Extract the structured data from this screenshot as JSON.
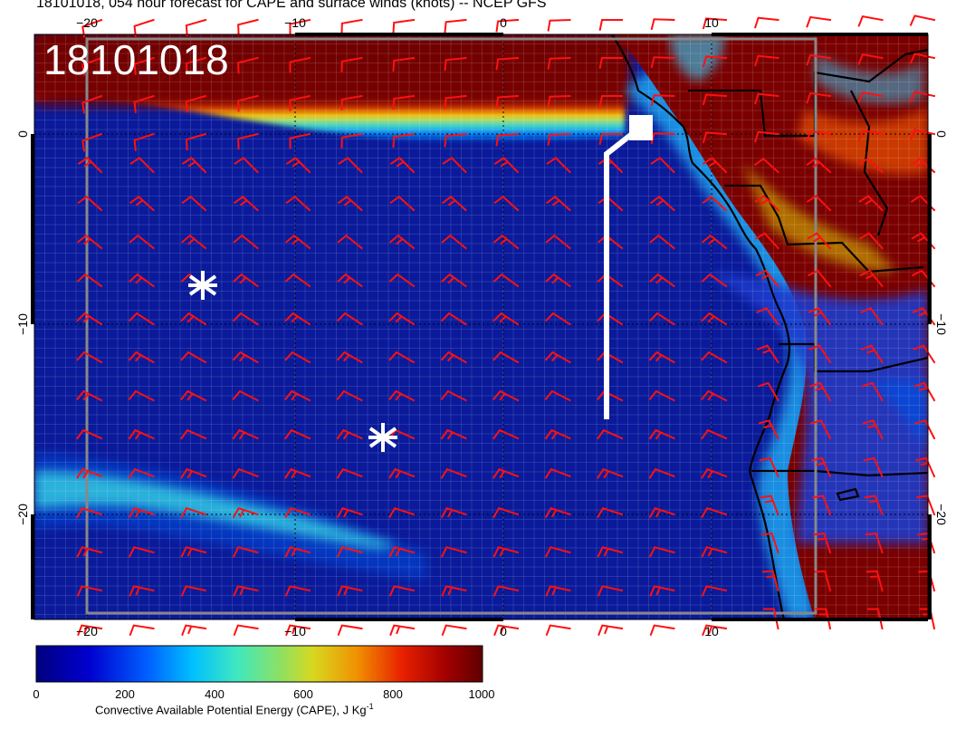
{
  "title": "18101018, 054 hour forecast for CAPE and surface winds (knots) -- NCEP GFS",
  "stamp": "18101018",
  "x_ticks": [
    "−20",
    "−10",
    "0",
    "10"
  ],
  "y_ticks": [
    "0",
    "−10",
    "−20"
  ],
  "colorbar": {
    "ticks": [
      "0",
      "200",
      "400",
      "600",
      "800",
      "1000"
    ],
    "title": "Convective Available Potential Energy (CAPE), J Kg",
    "title_sup": "-1",
    "colors": [
      "#00007f",
      "#0000c8",
      "#0050ff",
      "#00b0ff",
      "#20e0d0",
      "#60e080",
      "#c0d840",
      "#f0b000",
      "#ff6000",
      "#e01000",
      "#a00000",
      "#600000"
    ]
  },
  "markers": [
    "asterisk-west",
    "asterisk-center"
  ],
  "colors": {
    "ocean": "#0a1a9a",
    "wind_barb": "#ff1010",
    "coast": "#000000",
    "high_cape": "#700000",
    "track": "#ffffff"
  }
}
